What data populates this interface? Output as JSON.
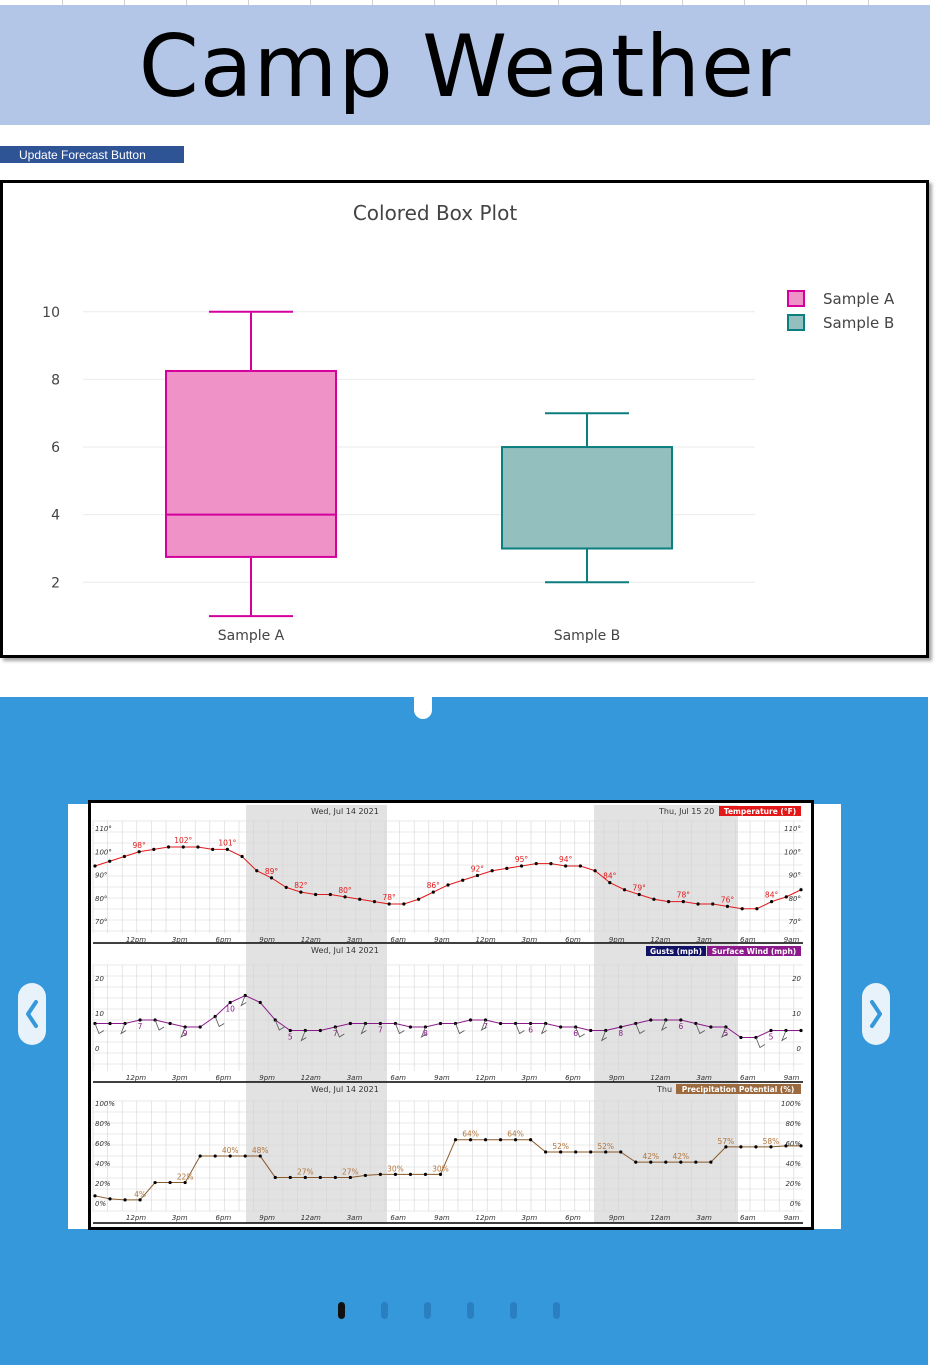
{
  "page": {
    "title": "Camp Weather"
  },
  "toolbar": {
    "update_label": "Update Forecast Button"
  },
  "colors": {
    "banner_bg": "#b4c6e7",
    "button_bg": "#2f5496",
    "carousel_bg": "#3498db",
    "sample_a": "#d5009b",
    "sample_b": "#0b7f7f"
  },
  "chart_data": {
    "type": "box",
    "title": "Colored Box Plot",
    "categories": [
      "Sample A",
      "Sample B"
    ],
    "series": [
      {
        "name": "Sample A",
        "min": 1,
        "q1": 2.75,
        "median": 4,
        "q3": 8.25,
        "max": 10,
        "color": "#d5009b",
        "fill": "#ee92c8"
      },
      {
        "name": "Sample B",
        "min": 2,
        "q1": 3,
        "median": 3,
        "q3": 6,
        "max": 7,
        "color": "#0b7f7f",
        "fill": "#93bfbf"
      }
    ],
    "ylim": [
      0.5,
      11
    ],
    "yticks": [
      2,
      4,
      6,
      8,
      10
    ],
    "legend": "top-right",
    "grid": true
  },
  "forecast": {
    "panel_dates": [
      "Wed, Jul 14 2021",
      "Wed, Jul 14 2021",
      "Wed, Jul 14 2021"
    ],
    "next_date": "Thu, Jul 15 20",
    "next_date_short": "Thu",
    "temp_label": "Temperature (°F)",
    "gusts_label": "Gusts (mph)",
    "wind_label": "Surface Wind (mph)",
    "precip_label": "Precipitation Potential (%)",
    "time_labels": [
      "12pm",
      "3pm",
      "6pm",
      "9pm",
      "12am",
      "3am",
      "6am",
      "9am",
      "12pm",
      "3pm",
      "6pm",
      "9pm",
      "12am",
      "3am",
      "6am",
      "9am"
    ],
    "temp_axis": [
      "110°",
      "100°",
      "90°",
      "80°",
      "70°"
    ],
    "wind_axis": [
      "20",
      "10",
      "0"
    ],
    "precip_axis": [
      "100%",
      "80%",
      "60%",
      "40%",
      "20%",
      "0%"
    ],
    "temp_labels": [
      "98°",
      "102°",
      "101°",
      "89°",
      "82°",
      "80°",
      "78°",
      "86°",
      "92°",
      "95°",
      "94°",
      "84°",
      "79°",
      "78°",
      "76°",
      "84°"
    ],
    "temp_values": [
      94,
      96,
      98,
      100,
      101,
      102,
      102,
      102,
      101,
      101,
      98,
      92,
      89,
      85,
      83,
      82,
      82,
      81,
      80,
      79,
      78,
      78,
      80,
      83,
      86,
      88,
      90,
      92,
      93,
      94,
      95,
      95,
      94,
      94,
      92,
      87,
      84,
      82,
      80,
      79,
      79,
      78,
      78,
      77,
      76,
      76,
      79,
      81,
      84
    ],
    "wind_labels": [
      "7",
      "9",
      "10",
      "5",
      "7",
      "7",
      "8",
      "7",
      "6",
      "6",
      "8",
      "6",
      "5",
      "5"
    ],
    "wind_values": [
      7,
      7,
      7,
      8,
      8,
      7,
      6,
      6,
      9,
      13,
      15,
      13,
      8,
      5,
      5,
      5,
      6,
      7,
      7,
      7,
      7,
      6,
      6,
      7,
      7,
      8,
      8,
      7,
      7,
      7,
      7,
      6,
      6,
      5,
      5,
      6,
      7,
      8,
      8,
      8,
      7,
      6,
      6,
      3,
      3,
      5,
      5,
      5
    ],
    "precip_labels": [
      "4%",
      "22%",
      "40%",
      "48%",
      "27%",
      "27%",
      "30%",
      "30%",
      "64%",
      "64%",
      "52%",
      "52%",
      "42%",
      "42%",
      "57%",
      "58%"
    ],
    "precip_values": [
      9,
      6,
      5,
      5,
      22,
      22,
      22,
      48,
      48,
      48,
      48,
      48,
      27,
      27,
      27,
      27,
      27,
      27,
      29,
      30,
      30,
      30,
      30,
      30,
      64,
      64,
      64,
      64,
      64,
      64,
      52,
      52,
      52,
      52,
      52,
      52,
      42,
      42,
      42,
      42,
      42,
      42,
      57,
      57,
      57,
      57,
      58,
      58
    ]
  },
  "carousel": {
    "slide_count": 6,
    "active_index": 0
  }
}
